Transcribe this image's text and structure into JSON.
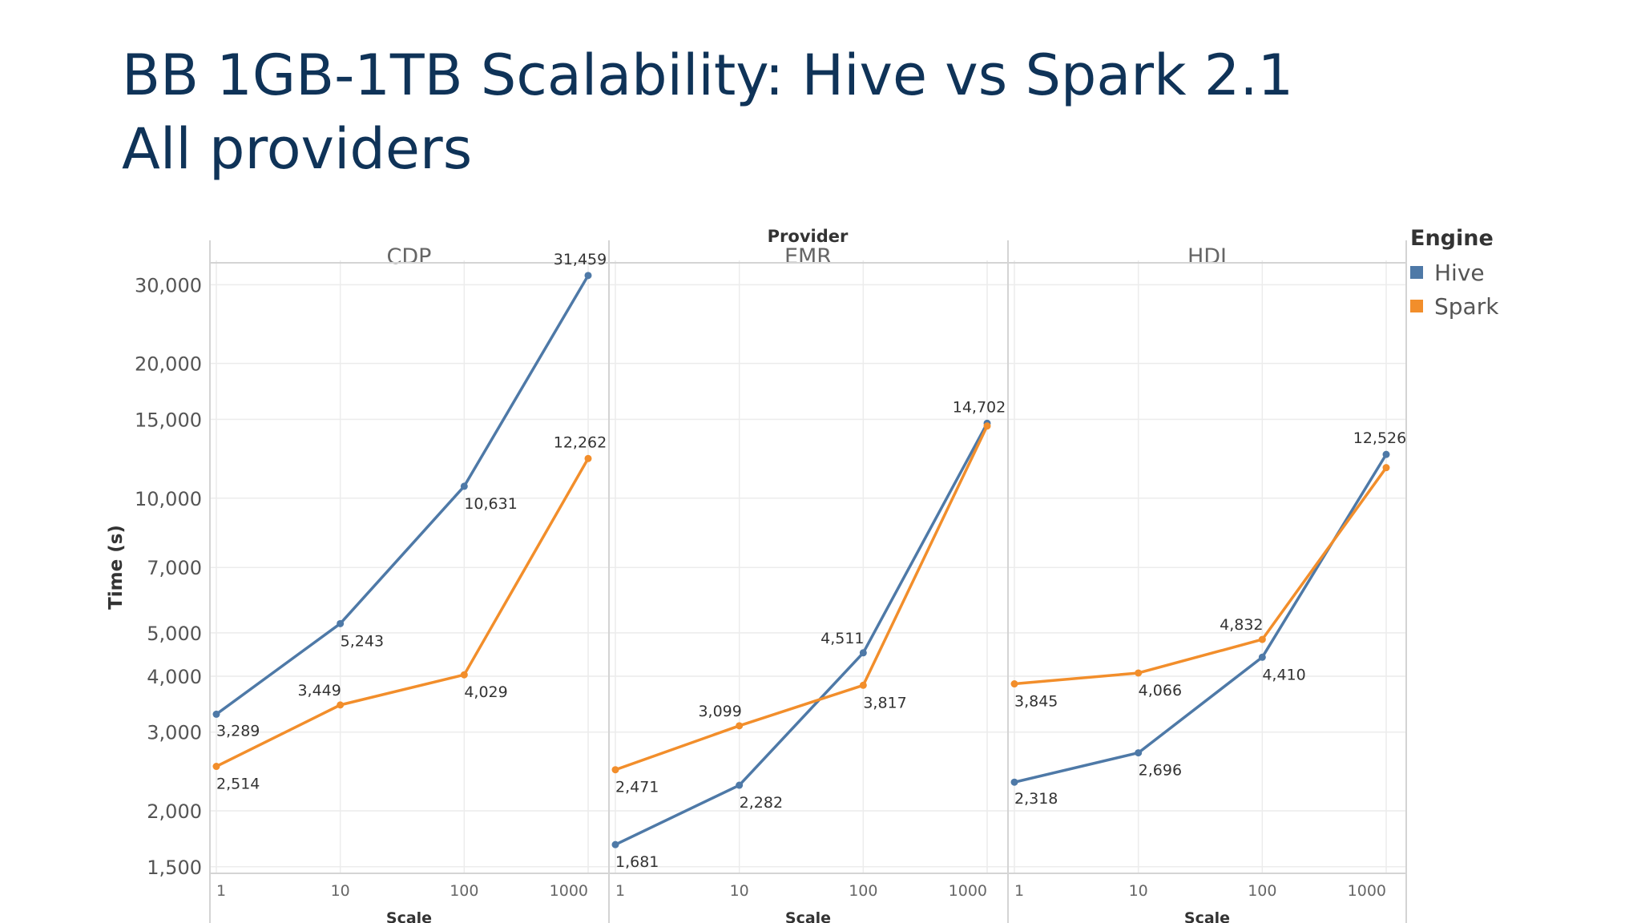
{
  "slide": {
    "title_line1": "BB 1GB-1TB Scalability: Hive vs Spark 2.1",
    "title_line2": "All providers"
  },
  "colors": {
    "hive": "#4e79a7",
    "spark": "#f28e2b"
  },
  "legend": {
    "title": "Engine",
    "items": [
      {
        "label": "Hive",
        "color": "#4e79a7"
      },
      {
        "label": "Spark",
        "color": "#f28e2b"
      }
    ]
  },
  "chart_data": {
    "type": "line",
    "header": "Provider",
    "xlabel": "Scale",
    "ylabel": "Time (s)",
    "y_scale": "log",
    "ylim": [
      1450,
      34000
    ],
    "y_ticks": [
      1500,
      2000,
      3000,
      4000,
      5000,
      7000,
      10000,
      15000,
      20000,
      30000
    ],
    "y_tick_labels": [
      "1,500",
      "2,000",
      "3,000",
      "4,000",
      "5,000",
      "7,000",
      "10,000",
      "15,000",
      "20,000",
      "30,000"
    ],
    "x": [
      1,
      10,
      100,
      1000
    ],
    "x_tick_labels": [
      "1",
      "10",
      "100",
      "1000"
    ],
    "grid": true,
    "legend_position": "top-right",
    "panels": [
      {
        "name": "CDP",
        "series": [
          {
            "name": "Hive",
            "values": [
              3289,
              5243,
              10631,
              31459
            ],
            "labels": [
              "3,289",
              "5,243",
              "10,631",
              "31,459"
            ]
          },
          {
            "name": "Spark",
            "values": [
              2514,
              3449,
              4029,
              12262
            ],
            "labels": [
              "2,514",
              "3,449",
              "4,029",
              "12,262"
            ]
          }
        ]
      },
      {
        "name": "EMR",
        "series": [
          {
            "name": "Hive",
            "values": [
              1681,
              2282,
              4511,
              14702
            ],
            "labels": [
              "1,681",
              "2,282",
              "4,511",
              "14,702"
            ]
          },
          {
            "name": "Spark",
            "values": [
              2471,
              3099,
              3817,
              14500
            ],
            "labels": [
              "2,471",
              "3,099",
              "3,817",
              ""
            ]
          }
        ]
      },
      {
        "name": "HDI",
        "series": [
          {
            "name": "Hive",
            "values": [
              2318,
              2696,
              4410,
              12526
            ],
            "labels": [
              "2,318",
              "2,696",
              "4,410",
              "12,526"
            ]
          },
          {
            "name": "Spark",
            "values": [
              3845,
              4066,
              4832,
              11700
            ],
            "labels": [
              "3,845",
              "4,066",
              "4,832",
              ""
            ]
          }
        ]
      }
    ]
  }
}
